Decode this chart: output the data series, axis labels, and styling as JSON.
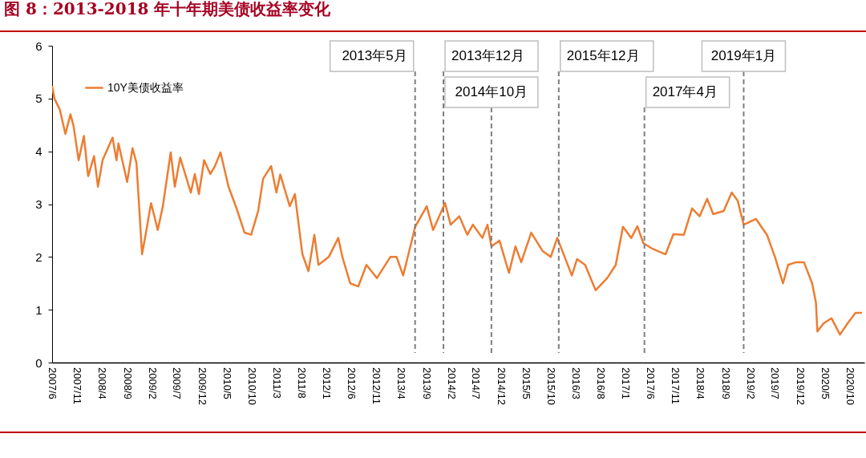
{
  "chart_data": {
    "type": "line",
    "title": "图 8：2013-2018 年十年期美债收益率变化",
    "x": [
      "2007-06-01",
      "2007-06-15",
      "2007-07-18",
      "2007-08-21",
      "2007-09-21",
      "2007-10-10",
      "2007-11-10",
      "2007-12-12",
      "2008-01-07",
      "2008-02-12",
      "2008-03-07",
      "2008-04-04",
      "2008-06-04",
      "2008-06-28",
      "2008-07-10",
      "2008-09-01",
      "2008-10-04",
      "2008-10-28",
      "2008-12-01",
      "2008-12-25",
      "2009-01-25",
      "2009-03-07",
      "2009-04-07",
      "2009-05-25",
      "2009-06-19",
      "2009-07-22",
      "2009-09-25",
      "2009-10-19",
      "2009-11-13",
      "2009-12-15",
      "2010-01-22",
      "2010-02-19",
      "2010-03-25",
      "2010-05-13",
      "2010-07-01",
      "2010-08-19",
      "2010-09-28",
      "2010-11-10",
      "2010-12-10",
      "2011-01-28",
      "2011-03-01",
      "2011-03-25",
      "2011-05-22",
      "2011-06-22",
      "2011-08-07",
      "2011-09-13",
      "2011-10-19",
      "2011-11-13",
      "2012-01-15",
      "2012-03-13",
      "2012-04-07",
      "2012-05-25",
      "2012-07-13",
      "2012-09-01",
      "2012-11-04",
      "2013-01-25",
      "2013-03-04",
      "2013-04-13",
      "2013-06-01",
      "2013-06-25",
      "2013-09-04",
      "2013-10-13",
      "2013-12-25",
      "2014-01-28",
      "2014-03-22",
      "2014-05-10",
      "2014-06-13",
      "2014-08-10",
      "2014-09-10",
      "2014-10-04",
      "2014-11-22",
      "2015-01-19",
      "2015-02-28",
      "2015-04-04",
      "2015-06-04",
      "2015-08-13",
      "2015-10-01",
      "2015-11-10",
      "2016-02-07",
      "2016-03-10",
      "2016-04-28",
      "2016-07-01",
      "2016-09-10",
      "2016-11-01",
      "2016-12-15",
      "2017-02-04",
      "2017-03-13",
      "2017-04-19",
      "2017-06-10",
      "2017-09-01",
      "2017-10-19",
      "2017-12-22",
      "2018-02-10",
      "2018-03-28",
      "2018-05-13",
      "2018-06-19",
      "2018-08-22",
      "2018-10-10",
      "2018-11-15",
      "2018-12-22",
      "2019-03-07",
      "2019-05-13",
      "2019-07-01",
      "2019-08-19",
      "2019-09-19",
      "2019-11-07",
      "2019-12-25",
      "2020-02-13",
      "2020-03-07",
      "2020-03-16",
      "2020-04-22",
      "2020-06-10",
      "2020-08-01",
      "2020-09-16",
      "2020-11-04",
      "2020-12-13"
    ],
    "series": [
      {
        "name": "10Y美债收益率",
        "color": "#ed7d31",
        "values": [
          5.24,
          5.0,
          4.79,
          4.33,
          4.7,
          4.48,
          3.83,
          4.29,
          3.53,
          3.91,
          3.33,
          3.83,
          4.26,
          3.83,
          4.15,
          3.42,
          4.06,
          3.78,
          2.05,
          2.46,
          3.02,
          2.51,
          2.96,
          3.98,
          3.33,
          3.88,
          3.22,
          3.57,
          3.19,
          3.83,
          3.57,
          3.72,
          3.98,
          3.33,
          2.92,
          2.46,
          2.42,
          2.87,
          3.48,
          3.72,
          3.22,
          3.56,
          2.96,
          3.19,
          2.05,
          1.73,
          2.42,
          1.85,
          2.0,
          2.36,
          2.0,
          1.5,
          1.44,
          1.85,
          1.6,
          2.0,
          2.0,
          1.65,
          2.26,
          2.57,
          2.96,
          2.51,
          3.02,
          2.61,
          2.77,
          2.42,
          2.61,
          2.36,
          2.61,
          2.2,
          2.31,
          1.7,
          2.2,
          1.9,
          2.46,
          2.11,
          2.0,
          2.36,
          1.65,
          1.96,
          1.85,
          1.37,
          1.6,
          1.85,
          2.57,
          2.36,
          2.58,
          2.26,
          2.16,
          2.05,
          2.43,
          2.42,
          2.92,
          2.77,
          3.1,
          2.81,
          2.87,
          3.22,
          3.07,
          2.61,
          2.72,
          2.42,
          2.0,
          1.5,
          1.85,
          1.9,
          1.9,
          1.5,
          1.14,
          0.59,
          0.74,
          0.84,
          0.53,
          0.74,
          0.94,
          0.94
        ]
      }
    ],
    "xlim": [
      "2007-06-01",
      "2020-12-28"
    ],
    "xticks": [
      {
        "value": "2007-06",
        "label": "2007/6"
      },
      {
        "value": "2007-11",
        "label": "2007/11"
      },
      {
        "value": "2008-04",
        "label": "2008/4"
      },
      {
        "value": "2008-09",
        "label": "2008/9"
      },
      {
        "value": "2009-02",
        "label": "2009/2"
      },
      {
        "value": "2009-07",
        "label": "2009/7"
      },
      {
        "value": "2009-12",
        "label": "2009/12"
      },
      {
        "value": "2010-05",
        "label": "2010/5"
      },
      {
        "value": "2010-10",
        "label": "2010/10"
      },
      {
        "value": "2011-03",
        "label": "2011/3"
      },
      {
        "value": "2011-08",
        "label": "2011/8"
      },
      {
        "value": "2012-01",
        "label": "2012/1"
      },
      {
        "value": "2012-06",
        "label": "2012/6"
      },
      {
        "value": "2012-11",
        "label": "2012/11"
      },
      {
        "value": "2013-04",
        "label": "2013/4"
      },
      {
        "value": "2013-09",
        "label": "2013/9"
      },
      {
        "value": "2014-02",
        "label": "2014/2"
      },
      {
        "value": "2014-07",
        "label": "2014/7"
      },
      {
        "value": "2014-12",
        "label": "2014/12"
      },
      {
        "value": "2015-05",
        "label": "2015/5"
      },
      {
        "value": "2015-10",
        "label": "2015/10"
      },
      {
        "value": "2016-03",
        "label": "2016/3"
      },
      {
        "value": "2016-08",
        "label": "2016/8"
      },
      {
        "value": "2017-01",
        "label": "2017/1"
      },
      {
        "value": "2017-06",
        "label": "2017/6"
      },
      {
        "value": "2017-11",
        "label": "2017/11"
      },
      {
        "value": "2018-04",
        "label": "2018/4"
      },
      {
        "value": "2018-09",
        "label": "2018/9"
      },
      {
        "value": "2019-02",
        "label": "2019/2"
      },
      {
        "value": "2019-07",
        "label": "2019/7"
      },
      {
        "value": "2019-12",
        "label": "2019/12"
      },
      {
        "value": "2020-05",
        "label": "2020/5"
      },
      {
        "value": "2020-10",
        "label": "2020/10"
      }
    ],
    "ylim": [
      0,
      6
    ],
    "yticks": [
      0,
      1,
      2,
      3,
      4,
      5,
      6
    ],
    "ref_lines": [
      {
        "axis": "x",
        "value": "2013-06-25",
        "label": "2013年5月",
        "color": "#7f7f7f",
        "line_style": "dashed"
      },
      {
        "axis": "x",
        "value": "2013-12-15",
        "label": "2013年12月",
        "color": "#7f7f7f",
        "line_style": "dashed"
      },
      {
        "axis": "x",
        "value": "2014-10-04",
        "label": "2014年10月",
        "color": "#7f7f7f",
        "line_style": "dashed"
      },
      {
        "axis": "x",
        "value": "2015-11-19",
        "label": "2015年12月",
        "color": "#7f7f7f",
        "line_style": "dashed"
      },
      {
        "axis": "x",
        "value": "2017-04-25",
        "label": "2017年4月",
        "color": "#7f7f7f",
        "line_style": "dashed"
      },
      {
        "axis": "x",
        "value": "2018-12-22",
        "label": "2019年1月",
        "color": "#7f7f7f",
        "line_style": "dashed"
      }
    ],
    "grid": false,
    "legend": "top left",
    "marker": "none",
    "line_style": "solid"
  }
}
